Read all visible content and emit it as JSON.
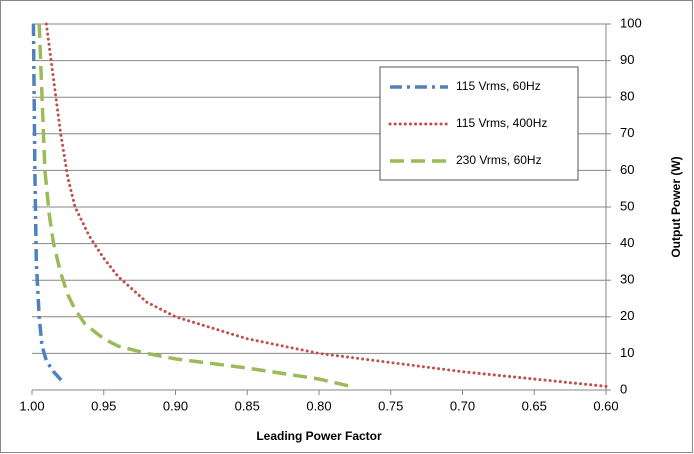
{
  "chart_data": {
    "type": "line",
    "x_label": "Leading Power Factor",
    "y_label": "Output Power (W)",
    "xlim": [
      1,
      0.6
    ],
    "xticks": [
      {
        "value": 1,
        "label": "1.00"
      },
      0.95,
      {
        "value": 0.9,
        "label": "0.90"
      },
      0.85,
      {
        "value": 0.8,
        "label": "0.80"
      },
      0.75,
      {
        "value": 0.7,
        "label": "0.70"
      },
      0.65,
      {
        "value": 0.6,
        "label": "0.60"
      }
    ],
    "ylim": [
      0,
      100
    ],
    "yticks": [
      0,
      10,
      20,
      30,
      40,
      50,
      60,
      70,
      80,
      90,
      100
    ],
    "y_axis_side": "right",
    "grid": true,
    "legend": "upper-right",
    "series": [
      {
        "name": "115 Vrms, 60Hz",
        "color": "#4f81bd",
        "style": "dashdot",
        "x": [
          0.999,
          0.998,
          0.997,
          0.995,
          0.993,
          0.99,
          0.985,
          0.978
        ],
        "values": [
          100,
          60,
          35,
          20,
          12,
          8,
          5,
          2
        ]
      },
      {
        "name": "115 Vrms, 400Hz",
        "color": "#c0504d",
        "style": "dotted",
        "x": [
          0.99,
          0.985,
          0.98,
          0.975,
          0.97,
          0.96,
          0.95,
          0.94,
          0.92,
          0.9,
          0.85,
          0.8,
          0.75,
          0.7,
          0.65,
          0.6
        ],
        "values": [
          100,
          85,
          70,
          58,
          50,
          42,
          36,
          31,
          24,
          20,
          14,
          10,
          7.5,
          5,
          3,
          1
        ]
      },
      {
        "name": "230 Vrms, 60Hz",
        "color": "#9bbb59",
        "style": "dashed",
        "x": [
          0.995,
          0.993,
          0.991,
          0.988,
          0.985,
          0.98,
          0.975,
          0.97,
          0.963,
          0.95,
          0.94,
          0.92,
          0.9,
          0.85,
          0.8,
          0.778
        ],
        "values": [
          100,
          80,
          60,
          48,
          40,
          32,
          26,
          22,
          18,
          14,
          12,
          10,
          8.5,
          6,
          3,
          1
        ]
      }
    ]
  }
}
